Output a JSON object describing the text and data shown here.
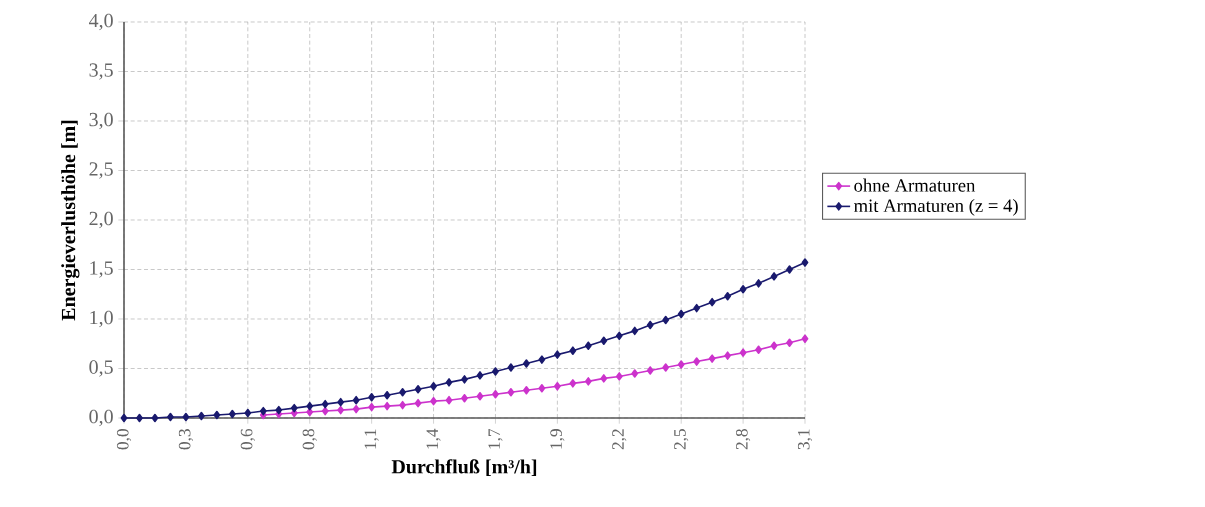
{
  "chart_data": {
    "type": "line",
    "xlabel": "Durchfluß [m³/h]",
    "ylabel": "Energieverlusthöhe [m]",
    "categories": [
      "0,0",
      null,
      null,
      null,
      "0,3",
      null,
      null,
      null,
      "0,6",
      null,
      null,
      null,
      "0,8",
      null,
      null,
      null,
      "1,1",
      null,
      null,
      null,
      "1,4",
      null,
      null,
      null,
      "1,7",
      null,
      null,
      null,
      "1,9",
      null,
      null,
      null,
      "2,2",
      null,
      null,
      null,
      "2,5",
      null,
      null,
      null,
      "2,8",
      null,
      null,
      null,
      "3,1"
    ],
    "series": [
      {
        "name": "ohne Armaturen",
        "color": "#cc33cc",
        "values": [
          null,
          null,
          null,
          null,
          null,
          null,
          null,
          null,
          null,
          0.03,
          0.04,
          0.05,
          0.06,
          0.07,
          0.08,
          0.09,
          0.11,
          0.12,
          0.13,
          0.15,
          0.17,
          0.18,
          0.2,
          0.22,
          0.24,
          0.26,
          0.28,
          0.3,
          0.32,
          0.35,
          0.37,
          0.4,
          0.42,
          0.45,
          0.48,
          0.51,
          0.54,
          0.57,
          0.6,
          0.63,
          0.66,
          0.69,
          0.73,
          0.76,
          0.8
        ]
      },
      {
        "name": "mit Armaturen (z = 4)",
        "color": "#1a1a6e",
        "values": [
          0,
          0.0,
          0.0,
          0.01,
          0.01,
          0.02,
          0.03,
          0.04,
          0.05,
          0.07,
          0.08,
          0.1,
          0.12,
          0.14,
          0.16,
          0.18,
          0.21,
          0.23,
          0.26,
          0.29,
          0.32,
          0.36,
          0.39,
          0.43,
          0.47,
          0.51,
          0.55,
          0.59,
          0.64,
          0.68,
          0.73,
          0.78,
          0.83,
          0.88,
          0.94,
          0.99,
          1.05,
          1.11,
          1.17,
          1.23,
          1.3,
          1.36,
          1.43,
          1.5,
          1.57
        ]
      }
    ],
    "ylim": [
      0,
      4
    ],
    "yticks": [
      {
        "value": 0,
        "label": "0,0"
      },
      {
        "value": 0.5,
        "label": "0,5"
      },
      {
        "value": 1,
        "label": "1,0"
      },
      {
        "value": 1.5,
        "label": "1,5"
      },
      {
        "value": 2,
        "label": "2,0"
      },
      {
        "value": 2.5,
        "label": "2,5"
      },
      {
        "value": 3,
        "label": "3,0"
      },
      {
        "value": 3.5,
        "label": "3,5"
      },
      {
        "value": 4,
        "label": "4,0"
      }
    ],
    "grid": true,
    "legend": "right",
    "marker": "diamond",
    "line_style": "solid"
  }
}
